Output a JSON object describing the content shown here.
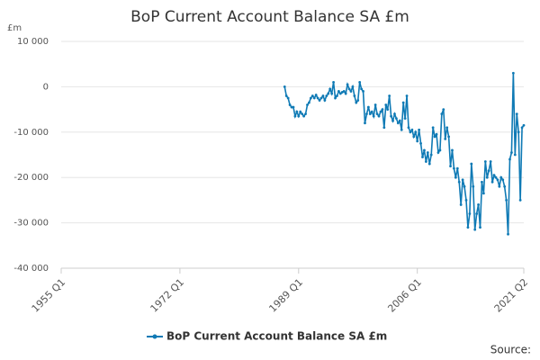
{
  "chart_data": {
    "type": "line",
    "title": "BoP Current Account Balance SA £m",
    "ylabel": "£m",
    "source": "Source:",
    "categories": [
      "1955 Q1",
      null,
      null,
      null,
      null,
      null,
      null,
      null,
      null,
      null,
      null,
      null,
      null,
      null,
      null,
      null,
      null,
      null,
      null,
      null,
      null,
      null,
      null,
      null,
      null,
      null,
      null,
      null,
      null,
      null,
      null,
      null,
      null,
      null,
      null,
      null,
      null,
      null,
      null,
      null,
      null,
      null,
      null,
      null,
      null,
      null,
      null,
      null,
      null,
      null,
      null,
      null,
      null,
      null,
      null,
      null,
      null,
      null,
      null,
      null,
      null,
      null,
      null,
      null,
      null,
      null,
      null,
      null,
      "1972 Q1",
      null,
      null,
      null,
      null,
      null,
      null,
      null,
      null,
      null,
      null,
      null,
      null,
      null,
      null,
      null,
      null,
      null,
      null,
      null,
      null,
      null,
      null,
      null,
      null,
      null,
      null,
      null,
      null,
      null,
      null,
      null,
      null,
      null,
      null,
      null,
      null,
      null,
      null,
      null,
      null,
      null,
      null,
      null,
      null,
      null,
      null,
      null,
      null,
      null,
      null,
      null,
      null,
      null,
      null,
      null,
      null,
      null,
      null,
      null,
      null,
      null,
      null,
      null,
      null,
      null,
      null,
      null,
      "1989 Q1",
      null,
      null,
      null,
      null,
      null,
      null,
      null,
      null,
      null,
      null,
      null,
      null,
      null,
      null,
      null,
      null,
      null,
      null,
      null,
      null,
      null,
      null,
      null,
      null,
      null,
      null,
      null,
      null,
      null,
      null,
      null,
      null,
      null,
      null,
      null,
      null,
      null,
      null,
      null,
      null,
      null,
      null,
      null,
      null,
      null,
      null,
      null,
      null,
      null,
      null,
      null,
      null,
      null,
      null,
      null,
      null,
      null,
      null,
      null,
      null,
      null,
      null,
      null,
      null,
      null,
      null,
      null,
      "2006 Q1",
      null,
      null,
      null,
      null,
      null,
      null,
      null,
      null,
      null,
      null,
      null,
      null,
      null,
      null,
      null,
      null,
      null,
      null,
      null,
      null,
      null,
      null,
      null,
      null,
      null,
      null,
      null,
      null,
      null,
      null,
      null,
      null,
      null,
      null,
      null,
      null,
      null,
      null,
      null,
      null,
      null,
      null,
      null,
      null,
      null,
      null,
      null,
      null,
      null,
      null,
      null,
      null,
      null,
      null,
      null,
      null,
      null,
      null,
      null,
      null,
      "2021 Q2"
    ],
    "series": [
      {
        "name": "BoP Current Account Balance SA £m",
        "color": "#0f7ab5",
        "values": [
          null,
          null,
          null,
          null,
          null,
          null,
          null,
          null,
          null,
          null,
          null,
          null,
          null,
          null,
          null,
          null,
          null,
          null,
          null,
          null,
          null,
          null,
          null,
          null,
          null,
          null,
          null,
          null,
          null,
          null,
          null,
          null,
          null,
          null,
          null,
          null,
          null,
          null,
          null,
          null,
          null,
          null,
          null,
          null,
          null,
          null,
          null,
          null,
          null,
          null,
          null,
          null,
          null,
          null,
          null,
          null,
          null,
          null,
          null,
          null,
          null,
          null,
          null,
          null,
          null,
          null,
          null,
          null,
          null,
          null,
          null,
          null,
          null,
          null,
          null,
          null,
          null,
          null,
          null,
          null,
          null,
          null,
          null,
          null,
          null,
          null,
          null,
          null,
          null,
          null,
          null,
          null,
          null,
          null,
          null,
          null,
          null,
          null,
          null,
          null,
          null,
          null,
          null,
          null,
          null,
          null,
          null,
          null,
          null,
          null,
          null,
          null,
          null,
          null,
          null,
          null,
          null,
          null,
          null,
          null,
          null,
          null,
          null,
          null,
          null,
          null,
          null,
          null,
          0,
          -2000,
          -2500,
          -4000,
          -4500,
          -4500,
          -6500,
          -5500,
          -6500,
          -5500,
          -6000,
          -6500,
          -6000,
          -4000,
          -3500,
          -2500,
          -2000,
          -2500,
          -1800,
          -2500,
          -3000,
          -2500,
          -2000,
          -3000,
          -2000,
          -1500,
          -500,
          -1500,
          1000,
          -2500,
          -2000,
          -1000,
          -1500,
          -1200,
          -1000,
          -1500,
          500,
          -500,
          -1000,
          0,
          -2000,
          -3500,
          -3000,
          1000,
          -500,
          -1000,
          -8000,
          -6000,
          -4500,
          -6000,
          -5500,
          -6500,
          -4000,
          -6000,
          -6500,
          -5500,
          -5000,
          -9000,
          -4000,
          -5000,
          -2000,
          -6500,
          -7500,
          -6000,
          -7000,
          -8000,
          -7500,
          -9500,
          -3500,
          -7000,
          -2000,
          -9000,
          -10000,
          -9500,
          -11000,
          -10000,
          -12000,
          -9500,
          -12500,
          -15500,
          -14000,
          -16500,
          -14500,
          -17000,
          -15000,
          -9000,
          -11000,
          -10500,
          -14500,
          -14000,
          -6000,
          -5000,
          -11500,
          -9000,
          -11000,
          -17500,
          -14000,
          -18000,
          -20000,
          -18000,
          -21000,
          -26000,
          -20500,
          -22000,
          -25000,
          -31000,
          -28000,
          -17000,
          -22000,
          -31500,
          -28000,
          -26000,
          -31000,
          -21000,
          -23500,
          -16500,
          -20000,
          -18500,
          -16500,
          -21000,
          -19500,
          -20000,
          -20500,
          -22000,
          -20000,
          -20500,
          -22000,
          -25000,
          -32500,
          -16000,
          -14500,
          3000,
          -15000,
          -6000,
          -10000,
          -25000,
          -9000,
          -8500
        ]
      }
    ],
    "ylim": [
      -40000,
      10000
    ],
    "yticks": [
      {
        "value": -40000,
        "label": "-40 000"
      },
      {
        "value": -30000,
        "label": "-30 000"
      },
      {
        "value": -20000,
        "label": "-20 000"
      },
      {
        "value": -10000,
        "label": "-10 000"
      },
      0,
      {
        "value": 10000,
        "label": "10 000"
      }
    ],
    "grid": true
  }
}
